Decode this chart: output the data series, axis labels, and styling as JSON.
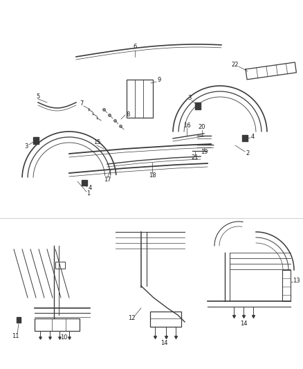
{
  "bg_color": "#ffffff",
  "fig_width": 4.38,
  "fig_height": 5.33,
  "dpi": 100,
  "line_color": "#3a3a3a",
  "label_fontsize": 6.0,
  "label_color": "#1a1a1a"
}
